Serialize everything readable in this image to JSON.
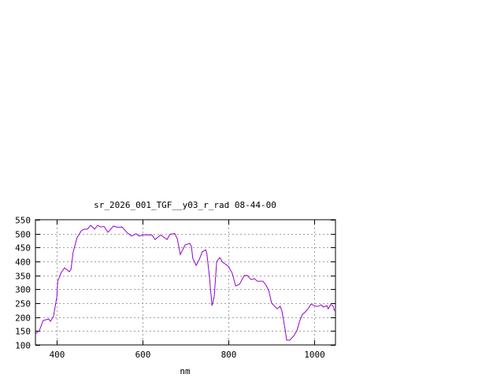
{
  "chart_data": {
    "type": "line",
    "title": "sr_2026_001_TGF__y03_r_rad 08-44-00",
    "xlabel": "nm",
    "ylabel": "",
    "xlim": [
      350,
      1050
    ],
    "ylim": [
      100,
      550
    ],
    "xticks": [
      400,
      600,
      800,
      1000
    ],
    "yticks": [
      100,
      150,
      200,
      250,
      300,
      350,
      400,
      450,
      500,
      550
    ],
    "grid": true,
    "line_color": "#9400d3",
    "series": [
      {
        "x": [
          350,
          359,
          368,
          381,
          385,
          392,
          400,
          402,
          410,
          418,
          429,
          433,
          438,
          447,
          457,
          464,
          471,
          479,
          488,
          495,
          502,
          510,
          519,
          532,
          543,
          552,
          563,
          574,
          585,
          592,
          601,
          622,
          629,
          642,
          657,
          664,
          675,
          681,
          688,
          699,
          710,
          714,
          717,
          725,
          732,
          739,
          747,
          750,
          756,
          762,
          767,
          773,
          780,
          787,
          800,
          809,
          817,
          826,
          837,
          844,
          853,
          861,
          868,
          881,
          888,
          895,
          901,
          914,
          921,
          925,
          932,
          936,
          943,
          952,
          960,
          967,
          973,
          978,
          986,
          993,
          1004,
          1010,
          1017,
          1022,
          1030,
          1033,
          1039,
          1044,
          1048
        ],
        "y": [
          140,
          151,
          188,
          193,
          185,
          202,
          273,
          329,
          360,
          377,
          363,
          372,
          434,
          485,
          510,
          516,
          516,
          530,
          516,
          530,
          524,
          526,
          505,
          527,
          522,
          524,
          505,
          491,
          500,
          491,
          496,
          495,
          479,
          495,
          479,
          498,
          500,
          481,
          425,
          459,
          465,
          454,
          411,
          386,
          406,
          434,
          442,
          428,
          343,
          241,
          273,
          400,
          414,
          397,
          383,
          358,
          312,
          318,
          349,
          350,
          335,
          338,
          329,
          329,
          315,
          292,
          250,
          230,
          239,
          222,
          160,
          117,
          117,
          131,
          151,
          188,
          210,
          216,
          230,
          247,
          239,
          239,
          244,
          236,
          241,
          230,
          245,
          241,
          222
        ]
      }
    ]
  }
}
